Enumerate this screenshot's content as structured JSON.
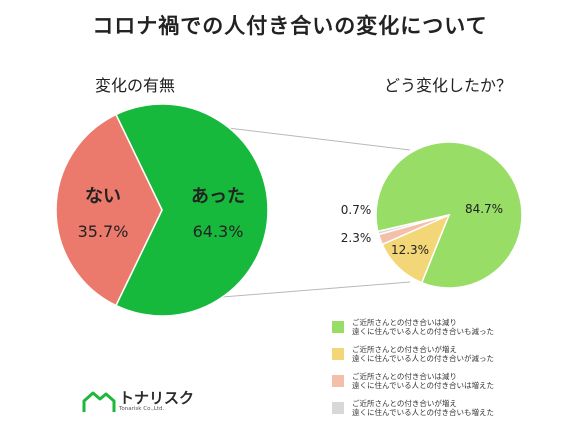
{
  "title": "コロナ禍での人付き合いの変化について",
  "chart_data": [
    {
      "type": "pie",
      "title": "変化の有無",
      "slices": [
        {
          "label": "あった",
          "value": 64.3,
          "display": "64.3%",
          "color": "#17b93c"
        },
        {
          "label": "ない",
          "value": 35.7,
          "display": "35.7%",
          "color": "#ec7a6c"
        }
      ]
    },
    {
      "type": "pie",
      "title": "どう変化したか？",
      "slices": [
        {
          "label": "ご近所さんとの付き合いは減り 遠くに住んでいる人との付き合いも減った",
          "value": 84.7,
          "display": "84.7%",
          "color": "#97dd66"
        },
        {
          "label": "ご近所さんとの付き合いが増え 遠くに住んでいる人との付き合いが減った",
          "value": 12.3,
          "display": "12.3%",
          "color": "#f3d677"
        },
        {
          "label": "ご近所さんとの付き合いは減り 遠くに住んでいる人との付き合いは増えた",
          "value": 2.3,
          "display": "2.3%",
          "color": "#f4bfa9"
        },
        {
          "label": "ご近所さんとの付き合いが増え 遠くに住んでいる人との付き合いも増えた",
          "value": 0.7,
          "display": "0.7%",
          "color": "#d8d8d8"
        }
      ]
    }
  ],
  "legend": [
    {
      "line1": "ご近所さんとの付き合いは減り",
      "line2": "遠くに住んでいる人との付き合いも減った",
      "color": "#97dd66"
    },
    {
      "line1": "ご近所さんとの付き合いが増え",
      "line2": "遠くに住んでいる人との付き合いが減った",
      "color": "#f3d677"
    },
    {
      "line1": "ご近所さんとの付き合いは減り",
      "line2": "遠くに住んでいる人との付き合いは増えた",
      "color": "#f4bfa9"
    },
    {
      "line1": "ご近所さんとの付き合いが増え",
      "line2": "遠くに住んでいる人との付き合いも増えた",
      "color": "#d8d8d8"
    }
  ],
  "logo": {
    "name": "トナリスク",
    "sub": "Tonarisk Co.,Ltd.",
    "color": "#1db83a"
  }
}
